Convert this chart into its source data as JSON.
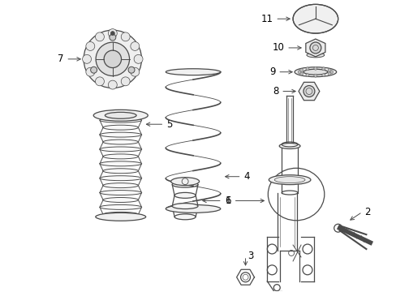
{
  "bg_color": "#ffffff",
  "line_color": "#4a4a4a",
  "lw": 0.9
}
